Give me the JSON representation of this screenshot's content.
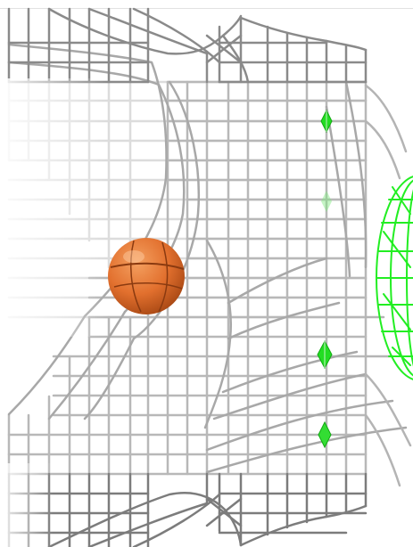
{
  "scene": {
    "kind": "3d-wireframe-maze",
    "background_color": "#ffffff",
    "wire_color_light": "#d4d4d4",
    "wire_color_mid": "#b0b0b0",
    "wire_color_dark": "#6a6a6a",
    "ball_color": "#e2702e",
    "ball_shade_color": "#a44512",
    "marker_color": "#22dd22",
    "goal_color": "#22ee22"
  },
  "objects": {
    "ball": {
      "icon": "basketball-icon"
    },
    "markers": {
      "icon": "green-diamond-icon",
      "count": 4
    },
    "goal": {
      "icon": "wireframe-sphere-icon"
    }
  }
}
